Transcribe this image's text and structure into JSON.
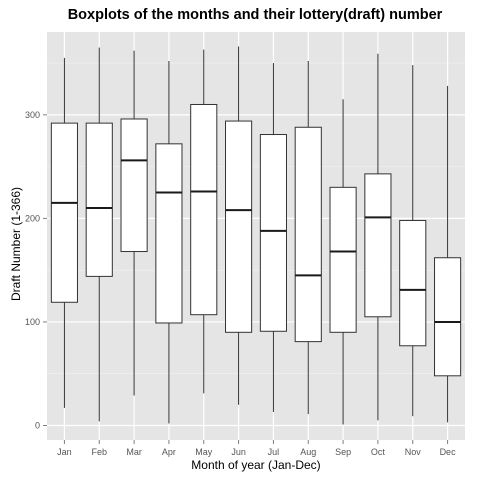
{
  "chart_data": {
    "type": "boxplot",
    "title": "Boxplots of the months and their lottery(draft) number",
    "xlabel": "Month of year (Jan-Dec)",
    "ylabel": "Draft Number (1-366)",
    "ylim": [
      -14,
      380
    ],
    "yticks": [
      0,
      100,
      200,
      300
    ],
    "grid": true,
    "legend": "none",
    "colors": {
      "panel": "#e5e5e5",
      "grid_major": "#ffffff",
      "grid_minor": "#f2f2f2",
      "box_fill": "#ffffff",
      "box_stroke": "#333333",
      "median": "#1a1a1a"
    },
    "categories": [
      "Jan",
      "Feb",
      "Mar",
      "Apr",
      "May",
      "Jun",
      "Jul",
      "Aug",
      "Sep",
      "Oct",
      "Nov",
      "Dec"
    ],
    "boxes": [
      {
        "min": 17,
        "q1": 119,
        "median": 215,
        "q3": 292,
        "max": 355
      },
      {
        "min": 4,
        "q1": 144,
        "median": 210,
        "q3": 292,
        "max": 365
      },
      {
        "min": 29,
        "q1": 168,
        "median": 256,
        "q3": 296,
        "max": 362
      },
      {
        "min": 2,
        "q1": 99,
        "median": 225,
        "q3": 272,
        "max": 352
      },
      {
        "min": 31,
        "q1": 107,
        "median": 226,
        "q3": 310,
        "max": 363
      },
      {
        "min": 20,
        "q1": 90,
        "median": 208,
        "q3": 294,
        "max": 366
      },
      {
        "min": 13,
        "q1": 91,
        "median": 188,
        "q3": 281,
        "max": 350
      },
      {
        "min": 11,
        "q1": 81,
        "median": 145,
        "q3": 288,
        "max": 352
      },
      {
        "min": 1,
        "q1": 90,
        "median": 168,
        "q3": 230,
        "max": 315
      },
      {
        "min": 5,
        "q1": 105,
        "median": 201,
        "q3": 243,
        "max": 359
      },
      {
        "min": 9,
        "q1": 77,
        "median": 131,
        "q3": 198,
        "max": 348
      },
      {
        "min": 3,
        "q1": 48,
        "median": 100,
        "q3": 162,
        "max": 328
      }
    ]
  }
}
